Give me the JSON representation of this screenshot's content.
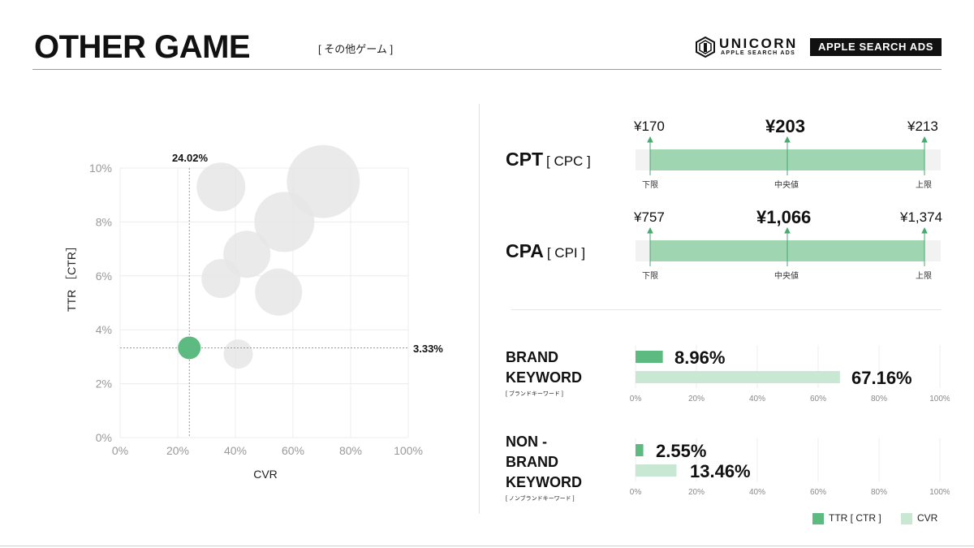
{
  "header": {
    "title": "OTHER GAME",
    "subtitle": "[ その他ゲーム ]",
    "logo_name": "UNICORN",
    "logo_sub": "APPLE SEARCH ADS",
    "badge": "APPLE SEARCH ADS"
  },
  "colors": {
    "accent": "#5dbb82",
    "accent_light": "#c9e8d4",
    "bubble": "#e6e6e6",
    "bar_track": "#f2f2f2"
  },
  "scatter": {
    "ylabel": "TTR ［CTR］",
    "xlabel": "CVR",
    "highlight_x_label": "24.02%",
    "highlight_y_label": "3.33%"
  },
  "metrics": {
    "cpt": {
      "title": "CPT",
      "sub": "[ CPC ]",
      "min": "¥170",
      "median": "¥203",
      "max": "¥213",
      "min_label": "下限",
      "median_label": "中央値",
      "max_label": "上限"
    },
    "cpa": {
      "title": "CPA",
      "sub": "[ CPI ]",
      "min": "¥757",
      "median": "¥1,066",
      "max": "¥1,374",
      "min_label": "下限",
      "median_label": "中央値",
      "max_label": "上限"
    }
  },
  "keywords": {
    "brand": {
      "line1": "BRAND",
      "line2": "KEYWORD",
      "small": "[ ブランドキーワード ]",
      "ttr_label": "8.96%",
      "cvr_label": "67.16%"
    },
    "nonbrand": {
      "line1": "NON -",
      "line2": "BRAND",
      "line3": "KEYWORD",
      "small": "[ ノンブランドキーワード ]",
      "ttr_label": "2.55%",
      "cvr_label": "13.46%"
    }
  },
  "legend": {
    "ttr": "TTR [ CTR ]",
    "cvr": "CVR"
  },
  "chart_data": [
    {
      "type": "scatter",
      "xlabel": "CVR",
      "ylabel": "TTR ［CTR］",
      "xlim": [
        0,
        100
      ],
      "ylim": [
        0,
        10
      ],
      "x_ticks": [
        "0%",
        "20%",
        "40%",
        "60%",
        "80%",
        "100%"
      ],
      "y_ticks": [
        "0%",
        "2%",
        "4%",
        "6%",
        "8%",
        "10%"
      ],
      "grid": true,
      "highlight": {
        "x": 24.02,
        "y": 3.33
      },
      "points": [
        {
          "x": 24.02,
          "y": 3.33,
          "size": 14,
          "highlight": true
        },
        {
          "x": 70.5,
          "y": 9.5,
          "size": 45,
          "highlight": false
        },
        {
          "x": 35,
          "y": 9.3,
          "size": 30,
          "highlight": false
        },
        {
          "x": 57,
          "y": 8.0,
          "size": 37,
          "highlight": false
        },
        {
          "x": 44,
          "y": 6.8,
          "size": 29,
          "highlight": false
        },
        {
          "x": 35,
          "y": 5.9,
          "size": 24,
          "highlight": false
        },
        {
          "x": 55,
          "y": 5.4,
          "size": 29,
          "highlight": false
        },
        {
          "x": 41,
          "y": 3.1,
          "size": 18,
          "highlight": false
        }
      ]
    },
    {
      "type": "bar",
      "title": "BRAND KEYWORD",
      "orientation": "horizontal",
      "xlim": [
        0,
        100
      ],
      "x_ticks": [
        "0%",
        "20%",
        "40%",
        "60%",
        "80%",
        "100%"
      ],
      "series": [
        {
          "name": "TTR [ CTR ]",
          "values": [
            8.96
          ]
        },
        {
          "name": "CVR",
          "values": [
            67.16
          ]
        }
      ]
    },
    {
      "type": "bar",
      "title": "NON - BRAND KEYWORD",
      "orientation": "horizontal",
      "xlim": [
        0,
        100
      ],
      "x_ticks": [
        "0%",
        "20%",
        "40%",
        "60%",
        "80%",
        "100%"
      ],
      "series": [
        {
          "name": "TTR [ CTR ]",
          "values": [
            2.55
          ]
        },
        {
          "name": "CVR",
          "values": [
            13.46
          ]
        }
      ]
    }
  ]
}
